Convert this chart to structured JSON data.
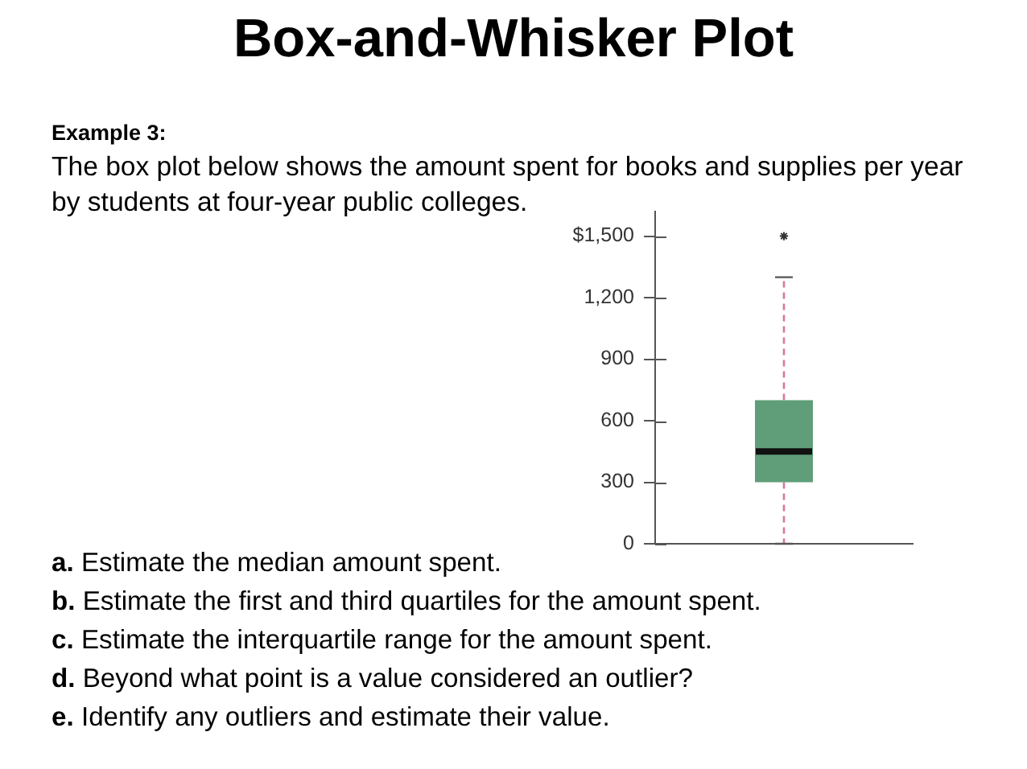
{
  "chart_data": {
    "type": "box",
    "title": "Box-and-Whisker Plot",
    "annotations": [
      "Example 3:",
      "The box plot below shows the amount spent for books and supplies per year by students at four-year public colleges.",
      "a. Estimate the median amount spent.",
      "b. Estimate the first and third quartiles for the amount spent.",
      "c. Estimate the interquartile range for the amount spent.",
      "d. Beyond what point is a value considered an outlier?",
      "e. Identify any outliers and estimate their value."
    ],
    "categories": [
      null
    ],
    "boxes": [
      {
        "low": 0,
        "q1": 300,
        "median": 450,
        "q3": 700,
        "high": 1300,
        "outliers": [
          1500
        ]
      }
    ],
    "color": "#5f9e78",
    "marker": "star",
    "ylim": [
      0,
      1620
    ],
    "yticks": [
      0,
      300,
      600,
      900,
      {
        "value": 1200,
        "label": "1,200"
      },
      {
        "value": 1500,
        "label": "$1,500"
      }
    ],
    "tick_labels": "y"
  }
}
